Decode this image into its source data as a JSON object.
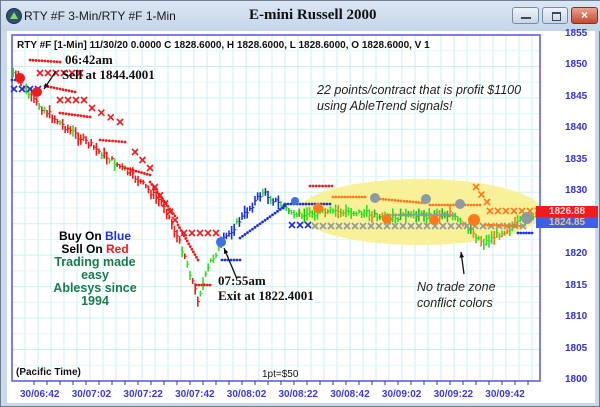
{
  "window": {
    "title": "RTY #F 3-Min/RTY #F 1-Min",
    "chart_title": "E-mini Russell 2000",
    "buttons": {
      "minimize": "minimize",
      "maximize": "maximize",
      "close": "×"
    }
  },
  "info_line": "RTY #F [1-Min] 11/30/20  0.0000 C 1828.6000, H 1828.6000, L 1828.6000, O 1828.6000, V 1",
  "annotations": {
    "sell_time": "06:42am",
    "sell_text": "Sell at 1844.4001",
    "exit_time": "07:55am",
    "exit_text": "Exit at 1822.4001",
    "profit_line1": "22 points/contract that is profit $1100",
    "profit_line2": "using AbleTrend signals!",
    "notrade_line1": "No trade zone",
    "notrade_line2": "conflict colors"
  },
  "promo": {
    "buy_prefix": "Buy On ",
    "buy_word": "Blue",
    "sell_prefix": "Sell On ",
    "sell_word": "Red",
    "line3": "Trading made easy",
    "line4": "Ablesys since 1994"
  },
  "footer": {
    "timezone": "(Pacific Time)",
    "point_value": "1pt=$50"
  },
  "price_labels": {
    "red": "1826.88",
    "blue": "1824.85"
  },
  "colors": {
    "buy": "#1f2fe0",
    "sell": "#ee1c1c",
    "neutral": "#33dd22",
    "conflict": "#ff7a1a",
    "gray": "#8e9aa0",
    "axis": "#3333cc",
    "zone": "#f7f08e",
    "grid": "#c9f0f7",
    "promo_green": "#1a7a4e"
  },
  "chart_data": {
    "type": "bar",
    "subtype": "ohlc-trend-signals",
    "title": "E-mini Russell 2000",
    "symbol": "RTY #F [1-Min]",
    "date": "11/30/20",
    "xlabel": "(Pacific Time)",
    "ylabel": "",
    "ylim": [
      1800,
      1855
    ],
    "y_ticks": [
      1855,
      1850,
      1845,
      1840,
      1835,
      1830,
      1825,
      1820,
      1815,
      1810,
      1805,
      1800
    ],
    "x_ticks": [
      "30/06:42",
      "30/07:02",
      "30/07:22",
      "30/07:42",
      "30/08:02",
      "30/08:22",
      "30/08:42",
      "30/09:02",
      "30/09:22",
      "30/09:42"
    ],
    "grid": true,
    "last_values": {
      "close": 1828.6,
      "high": 1828.6,
      "low": 1828.6,
      "open": 1828.6,
      "volume": 1
    },
    "right_markers": [
      {
        "value": 1826.88,
        "color": "red"
      },
      {
        "value": 1824.85,
        "color": "blue"
      }
    ],
    "signals": [
      {
        "type": "sell",
        "time": "06:42am",
        "price": 1844.4001
      },
      {
        "type": "exit",
        "time": "07:55am",
        "price": 1822.4001
      }
    ],
    "approx_close_path": [
      {
        "t": "06:34",
        "v": 1849
      },
      {
        "t": "06:42",
        "v": 1844.5
      },
      {
        "t": "06:52",
        "v": 1841
      },
      {
        "t": "07:02",
        "v": 1838
      },
      {
        "t": "07:12",
        "v": 1835
      },
      {
        "t": "07:22",
        "v": 1832
      },
      {
        "t": "07:32",
        "v": 1828
      },
      {
        "t": "07:40",
        "v": 1820
      },
      {
        "t": "07:45",
        "v": 1813
      },
      {
        "t": "07:50",
        "v": 1819
      },
      {
        "t": "07:55",
        "v": 1822.4
      },
      {
        "t": "08:02",
        "v": 1826
      },
      {
        "t": "08:10",
        "v": 1830
      },
      {
        "t": "08:22",
        "v": 1826.5
      },
      {
        "t": "08:42",
        "v": 1827
      },
      {
        "t": "09:02",
        "v": 1826
      },
      {
        "t": "09:22",
        "v": 1826.5
      },
      {
        "t": "09:35",
        "v": 1822
      },
      {
        "t": "09:52",
        "v": 1826
      }
    ],
    "annotations": [
      "22 points/contract that is profit $1100 using AbleTrend signals!",
      "No trade zone conflict colors",
      "1pt=$50"
    ]
  }
}
